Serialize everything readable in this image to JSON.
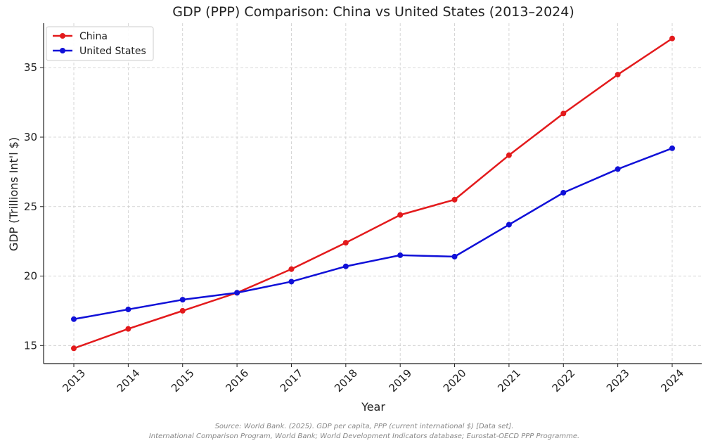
{
  "chart_data": {
    "type": "line",
    "title": "GDP (PPP) Comparison: China vs United States (2013–2024)",
    "xlabel": "Year",
    "ylabel": "GDP (Trillions Int'l $)",
    "x": [
      "2013",
      "2014",
      "2015",
      "2016",
      "2017",
      "2018",
      "2019",
      "2020",
      "2021",
      "2022",
      "2023",
      "2024"
    ],
    "ylim": [
      13.7,
      38.2
    ],
    "yticks": [
      "15",
      "20",
      "25",
      "30",
      "35"
    ],
    "grid": true,
    "legend_position": "top-left",
    "series": [
      {
        "name": "China",
        "color": "#e31a1c",
        "values": [
          14.8,
          16.2,
          17.5,
          18.8,
          20.5,
          22.4,
          24.4,
          25.5,
          28.7,
          31.7,
          34.5,
          37.1
        ]
      },
      {
        "name": "United States",
        "color": "#1010d8",
        "values": [
          16.9,
          17.6,
          18.3,
          18.8,
          19.6,
          20.7,
          21.5,
          21.4,
          23.7,
          26.0,
          27.7,
          29.2
        ]
      }
    ]
  },
  "source": {
    "line1": "Source: World Bank. (2025). GDP per capita, PPP (current international $) [Data set].",
    "line2": "International Comparison Program, World Bank; World Development Indicators database; Eurostat-OECD PPP Programme."
  }
}
